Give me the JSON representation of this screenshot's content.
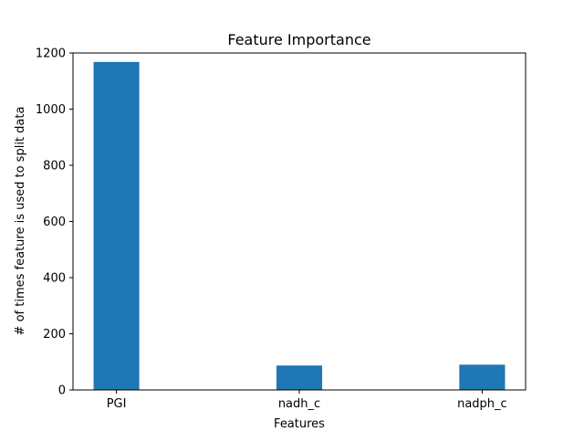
{
  "chart_data": {
    "type": "bar",
    "title": "Feature Importance",
    "xlabel": "Features",
    "ylabel": "# of times feature is used to split data",
    "categories": [
      "PGI",
      "nadh_c",
      "nadph_c"
    ],
    "values": [
      1168,
      87,
      90
    ],
    "ylim": [
      0,
      1200
    ],
    "yticks": [
      0,
      200,
      400,
      600,
      800,
      1000,
      1200
    ],
    "bar_color": "#1f77b4",
    "grid": false,
    "legend": false
  }
}
